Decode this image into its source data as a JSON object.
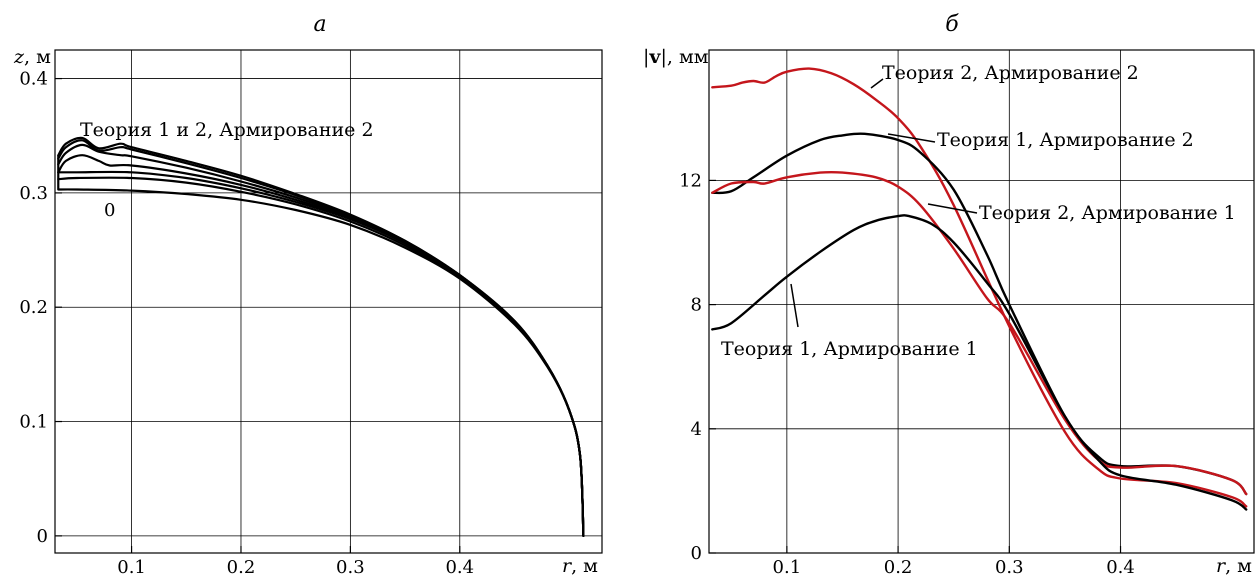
{
  "chart_data": [
    {
      "type": "line",
      "panel_label": "а",
      "xlabel_var": "r",
      "xlabel_unit": ", м",
      "ylabel_var": "z",
      "ylabel_unit": ", м",
      "xlim": [
        0.03,
        0.53
      ],
      "ylim": [
        -0.015,
        0.425
      ],
      "xticks": [
        "0.1",
        "0.2",
        "0.3",
        "0.4"
      ],
      "xtick_values": [
        0.1,
        0.2,
        0.3,
        0.4
      ],
      "yticks": [
        "0",
        "0.1",
        "0.2",
        "0.3",
        "0.4"
      ],
      "ytick_values": [
        0,
        0.1,
        0.2,
        0.3,
        0.4
      ],
      "grid": true,
      "annotations": [
        {
          "text": "Теория 1 и 2,  Армирование 2"
        },
        {
          "text": "0"
        }
      ],
      "series": [
        {
          "color": "#000000",
          "x": [
            0.033,
            0.05,
            0.1,
            0.15,
            0.2,
            0.25,
            0.3,
            0.35,
            0.4,
            0.45,
            0.48,
            0.5,
            0.51,
            0.513
          ],
          "y": [
            0.303,
            0.303,
            0.302,
            0.299,
            0.294,
            0.285,
            0.272,
            0.252,
            0.225,
            0.185,
            0.148,
            0.11,
            0.07,
            0.0
          ]
        },
        {
          "color": "#000000",
          "x": [
            0.033,
            0.05,
            0.1,
            0.15,
            0.2,
            0.25,
            0.3,
            0.35,
            0.4,
            0.45,
            0.48,
            0.5,
            0.51,
            0.513
          ],
          "y": [
            0.312,
            0.313,
            0.313,
            0.309,
            0.301,
            0.29,
            0.275,
            0.254,
            0.226,
            0.186,
            0.149,
            0.11,
            0.07,
            0.0
          ]
        },
        {
          "color": "#000000",
          "x": [
            0.033,
            0.05,
            0.1,
            0.15,
            0.2,
            0.25,
            0.3,
            0.35,
            0.4,
            0.45,
            0.48,
            0.5,
            0.51,
            0.513
          ],
          "y": [
            0.318,
            0.318,
            0.318,
            0.313,
            0.304,
            0.292,
            0.277,
            0.256,
            0.227,
            0.187,
            0.149,
            0.11,
            0.07,
            0.0
          ]
        },
        {
          "color": "#000000",
          "x": [
            0.033,
            0.04,
            0.055,
            0.07,
            0.08,
            0.1,
            0.15,
            0.2,
            0.25,
            0.3,
            0.35,
            0.4,
            0.45,
            0.48,
            0.5,
            0.51,
            0.513
          ],
          "y": [
            0.318,
            0.328,
            0.333,
            0.328,
            0.324,
            0.324,
            0.317,
            0.307,
            0.294,
            0.278,
            0.256,
            0.227,
            0.187,
            0.149,
            0.11,
            0.07,
            0.0
          ]
        },
        {
          "color": "#000000",
          "x": [
            0.033,
            0.04,
            0.055,
            0.07,
            0.09,
            0.1,
            0.15,
            0.2,
            0.25,
            0.3,
            0.35,
            0.4,
            0.45,
            0.48,
            0.5,
            0.51,
            0.513
          ],
          "y": [
            0.325,
            0.335,
            0.342,
            0.336,
            0.333,
            0.332,
            0.322,
            0.31,
            0.296,
            0.279,
            0.257,
            0.228,
            0.187,
            0.149,
            0.11,
            0.07,
            0.0
          ]
        },
        {
          "color": "#000000",
          "x": [
            0.033,
            0.04,
            0.055,
            0.07,
            0.09,
            0.1,
            0.15,
            0.2,
            0.25,
            0.3,
            0.35,
            0.4,
            0.45,
            0.48,
            0.5,
            0.51,
            0.513
          ],
          "y": [
            0.33,
            0.34,
            0.346,
            0.337,
            0.34,
            0.338,
            0.326,
            0.313,
            0.298,
            0.28,
            0.258,
            0.228,
            0.188,
            0.149,
            0.11,
            0.07,
            0.0
          ]
        },
        {
          "color": "#000000",
          "x": [
            0.033,
            0.04,
            0.055,
            0.07,
            0.09,
            0.1,
            0.15,
            0.2,
            0.25,
            0.3,
            0.35,
            0.4,
            0.45,
            0.48,
            0.5,
            0.51,
            0.513
          ],
          "y": [
            0.333,
            0.343,
            0.348,
            0.339,
            0.343,
            0.34,
            0.328,
            0.315,
            0.299,
            0.281,
            0.258,
            0.228,
            0.188,
            0.149,
            0.11,
            0.07,
            0.0
          ]
        }
      ]
    },
    {
      "type": "line",
      "panel_label": "б",
      "xlabel_var": "r",
      "xlabel_unit": ", м",
      "ylabel_var": "v",
      "ylabel_unit": ", мм",
      "xlim": [
        0.03,
        0.52
      ],
      "ylim": [
        0,
        16.2
      ],
      "xticks": [
        "0.1",
        "0.2",
        "0.3",
        "0.4"
      ],
      "xtick_values": [
        0.1,
        0.2,
        0.3,
        0.4
      ],
      "yticks": [
        "0",
        "4",
        "8",
        "12"
      ],
      "ytick_values": [
        0,
        4,
        8,
        12
      ],
      "grid": true,
      "series": [
        {
          "name": "Теория 2,  Армирование 2",
          "color": "#c4161c",
          "x": [
            0.033,
            0.05,
            0.06,
            0.07,
            0.08,
            0.09,
            0.1,
            0.12,
            0.14,
            0.16,
            0.18,
            0.2,
            0.22,
            0.25,
            0.3,
            0.35,
            0.38,
            0.4,
            0.45,
            0.5,
            0.513
          ],
          "y": [
            15.0,
            15.05,
            15.15,
            15.2,
            15.15,
            15.35,
            15.5,
            15.6,
            15.45,
            15.1,
            14.6,
            14.0,
            13.1,
            11.2,
            7.3,
            3.9,
            2.7,
            2.4,
            2.25,
            1.8,
            1.5
          ]
        },
        {
          "name": "Теория 1,  Армирование 2",
          "color": "#000000",
          "x": [
            0.033,
            0.05,
            0.07,
            0.1,
            0.13,
            0.15,
            0.17,
            0.2,
            0.22,
            0.25,
            0.28,
            0.3,
            0.35,
            0.38,
            0.4,
            0.45,
            0.5,
            0.513
          ],
          "y": [
            11.6,
            11.65,
            12.1,
            12.8,
            13.3,
            13.45,
            13.5,
            13.3,
            12.9,
            11.7,
            9.6,
            8.0,
            4.4,
            3.1,
            2.8,
            2.8,
            2.35,
            1.9
          ]
        },
        {
          "name": "Теория 2,  Армирование 1",
          "color": "#c4161c",
          "x": [
            0.033,
            0.05,
            0.07,
            0.08,
            0.1,
            0.13,
            0.15,
            0.18,
            0.2,
            0.22,
            0.25,
            0.28,
            0.3,
            0.35,
            0.38,
            0.4,
            0.45,
            0.5,
            0.513
          ],
          "y": [
            11.6,
            11.9,
            11.95,
            11.9,
            12.1,
            12.25,
            12.25,
            12.1,
            11.8,
            11.2,
            9.8,
            8.2,
            7.4,
            4.3,
            3.0,
            2.75,
            2.8,
            2.35,
            1.9
          ]
        },
        {
          "name": "Теория 1,  Армирование 1",
          "color": "#000000",
          "x": [
            0.033,
            0.05,
            0.08,
            0.1,
            0.13,
            0.16,
            0.18,
            0.2,
            0.21,
            0.23,
            0.25,
            0.28,
            0.3,
            0.35,
            0.38,
            0.4,
            0.45,
            0.5,
            0.513
          ],
          "y": [
            7.2,
            7.4,
            8.3,
            8.9,
            9.7,
            10.4,
            10.7,
            10.85,
            10.85,
            10.6,
            10.0,
            8.7,
            7.7,
            4.4,
            3.0,
            2.5,
            2.2,
            1.7,
            1.4
          ]
        }
      ]
    }
  ]
}
